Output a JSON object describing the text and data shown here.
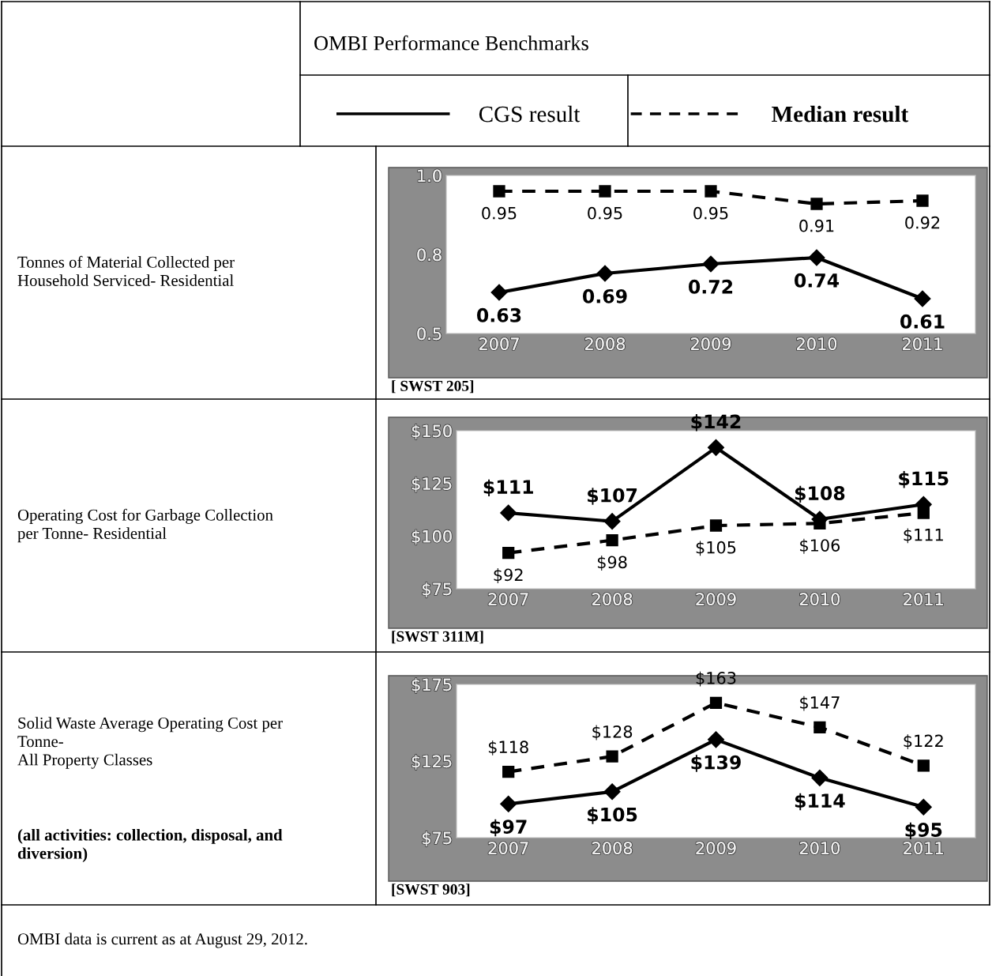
{
  "chart_data": [
    {
      "type": "line",
      "categories": [
        "2007",
        "2008",
        "2009",
        "2010",
        "2011"
      ],
      "series": [
        {
          "name": "CGS result",
          "color": "#000000",
          "marker": "diamond",
          "line_style": "solid",
          "values": [
            0.63,
            0.69,
            0.72,
            0.74,
            0.61
          ],
          "value_labels": [
            "0.63",
            "0.69",
            "0.72",
            "0.74",
            "0.61"
          ]
        },
        {
          "name": "Median result",
          "color": "#000000",
          "marker": "square",
          "line_style": "dashed",
          "values": [
            0.95,
            0.95,
            0.95,
            0.91,
            0.92
          ],
          "value_labels": [
            "0.95",
            "0.95",
            "0.95",
            "0.91",
            "0.92"
          ]
        }
      ],
      "ylim": [
        0.5,
        1.0
      ],
      "yticks": [
        {
          "value": 0.5,
          "label": "0.5"
        },
        {
          "value": 0.75,
          "label": "0.8"
        },
        {
          "value": 1.0,
          "label": "1.0"
        }
      ],
      "legend": "top",
      "grid": false,
      "annotations": [
        "OMBI Performance Benchmarks",
        "Tonnes of Material Collected per\nHousehold Serviced- Residential",
        "[ SWST 205]"
      ]
    },
    {
      "type": "line",
      "categories": [
        "2007",
        "2008",
        "2009",
        "2010",
        "2011"
      ],
      "series": [
        {
          "color": "#000000",
          "marker": "diamond",
          "line_style": "solid",
          "values": [
            111,
            107,
            142,
            108,
            115
          ],
          "value_labels": [
            "$111",
            "$107",
            "$142",
            "$108",
            "$115"
          ]
        },
        {
          "color": "#000000",
          "marker": "square",
          "line_style": "dashed",
          "values": [
            92,
            98,
            105,
            106,
            111
          ],
          "value_labels": [
            "$92",
            "$98",
            "$105",
            "$106",
            "$111"
          ]
        }
      ],
      "ylim": [
        75,
        150
      ],
      "yticks": [
        {
          "value": 75,
          "label": "$75"
        },
        {
          "value": 100,
          "label": "$100"
        },
        {
          "value": 125,
          "label": "$125"
        },
        {
          "value": 150,
          "label": "$150"
        }
      ],
      "grid": false,
      "annotations": [
        "Operating Cost for Garbage Collection\nper Tonne- Residential",
        "[SWST 311M]"
      ]
    },
    {
      "type": "line",
      "categories": [
        "2007",
        "2008",
        "2009",
        "2010",
        "2011"
      ],
      "series": [
        {
          "color": "#000000",
          "marker": "diamond",
          "line_style": "solid",
          "values": [
            97,
            105,
            139,
            114,
            95
          ],
          "value_labels": [
            "$97",
            "$105",
            "$139",
            "$114",
            "$95"
          ]
        },
        {
          "color": "#000000",
          "marker": "square",
          "line_style": "dashed",
          "values": [
            118,
            128,
            163,
            147,
            122
          ],
          "value_labels": [
            "$118",
            "$128",
            "$163",
            "$147",
            "$122"
          ]
        }
      ],
      "ylim": [
        75,
        175
      ],
      "yticks": [
        {
          "value": 75,
          "label": "$75"
        },
        {
          "value": 125,
          "label": "$125"
        },
        {
          "value": 175,
          "label": "$175"
        }
      ],
      "grid": false,
      "annotations": [
        "Solid Waste Average Operating Cost per\nTonne-\nAll Property Classes",
        "(all activities: collection, disposal, and\ndiversion)",
        "[SWST 903]",
        "OMBI data is current as at August 29, 2012."
      ]
    }
  ]
}
